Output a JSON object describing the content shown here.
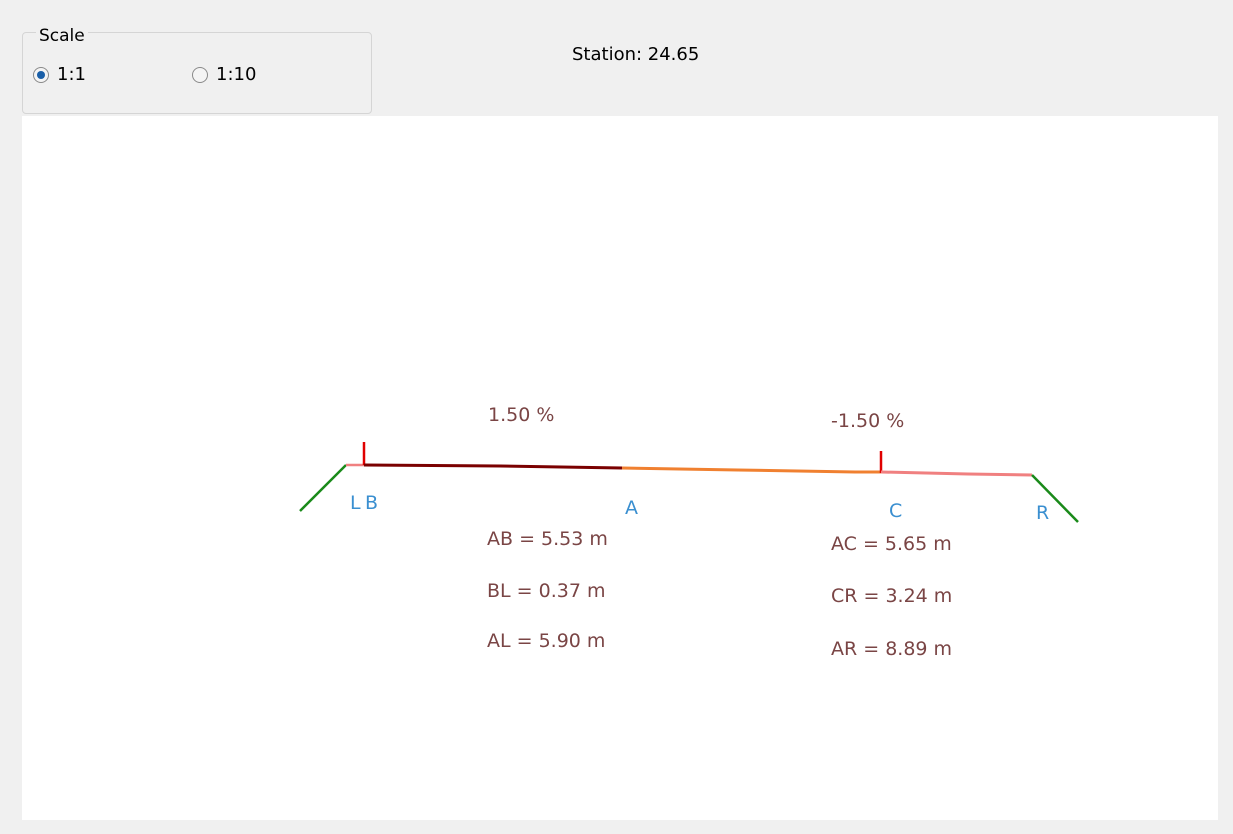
{
  "scale_group": {
    "title": "Scale",
    "options": [
      {
        "label": "1:1",
        "selected": true
      },
      {
        "label": "1:10",
        "selected": false
      }
    ]
  },
  "station": "Station: 24.65",
  "drawing": {
    "slopes": [
      "1.50 %",
      "-1.50 %"
    ],
    "points": [
      "L",
      "B",
      "A",
      "C",
      "R"
    ],
    "measurements": {
      "left": [
        "AB = 5.53 m",
        "BL = 0.37 m",
        "AL = 5.90 m"
      ],
      "right": [
        "AC = 5.65 m",
        "CR = 3.24 m",
        "AR = 8.89 m"
      ]
    }
  }
}
